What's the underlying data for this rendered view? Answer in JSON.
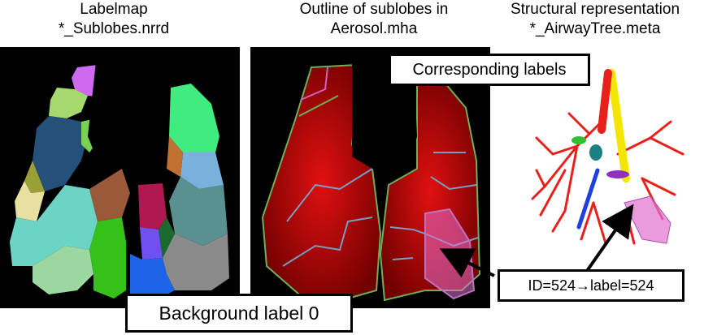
{
  "captions": {
    "labelmap": "Labelmap\n*_Sublobes.nrrd",
    "outline": "Outline of sublobes in\nAerosol.mha",
    "structural": "Structural representation\n*_AirwayTree.meta"
  },
  "callouts": {
    "corresponding": "Corresponding labels",
    "id_mapping": "ID=524→label=524",
    "background": "Background label 0"
  },
  "colors": {
    "panel_background": "#000000",
    "airway_red": "#e8201c",
    "airway_yellow": "#f2e600",
    "airway_blue": "#1f3fe0",
    "highlight_pink": "#e070d0",
    "aerosol_red": "#b00000"
  }
}
